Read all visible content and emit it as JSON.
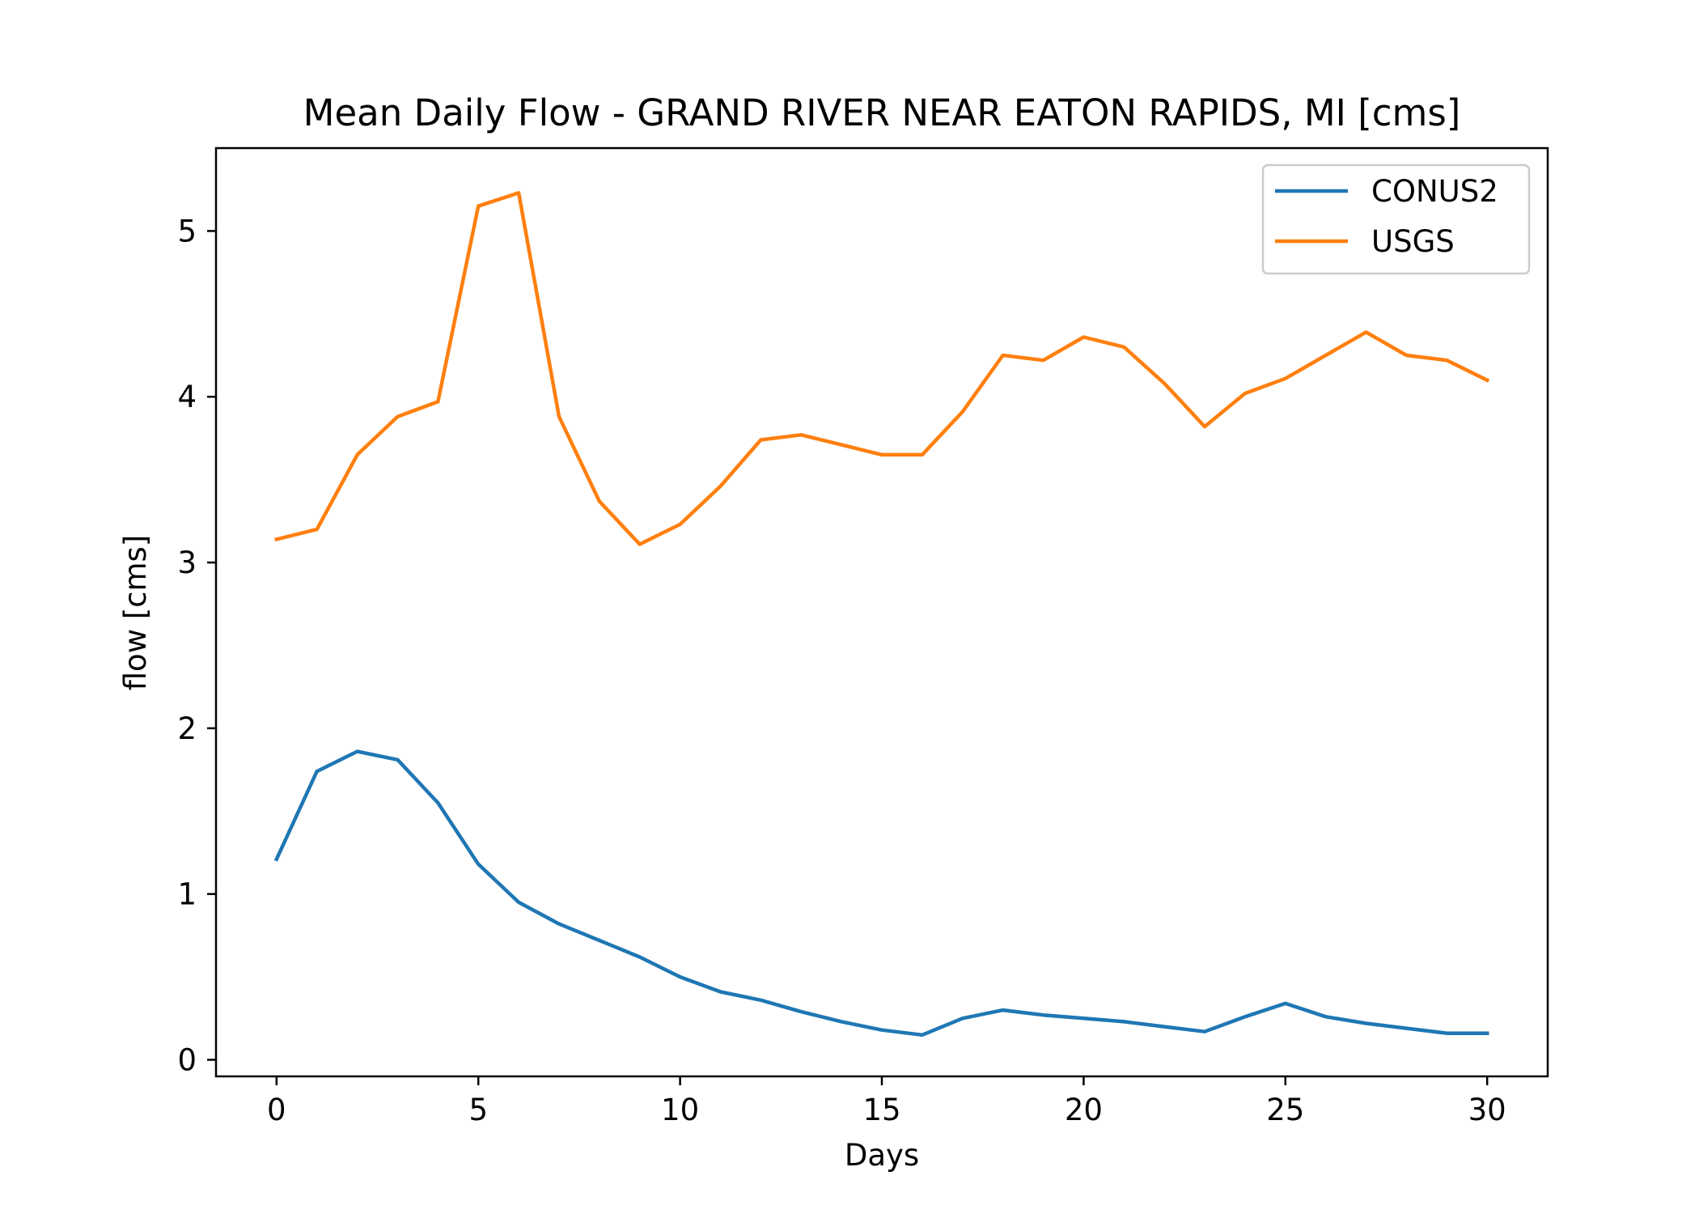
{
  "chart_data": {
    "type": "line",
    "title": "Mean Daily Flow - GRAND RIVER NEAR EATON RAPIDS, MI [cms]",
    "xlabel": "Days",
    "ylabel": "flow [cms]",
    "xlim": [
      -1.5,
      31.5
    ],
    "ylim": [
      -0.1,
      5.5
    ],
    "xticks": [
      0,
      5,
      10,
      15,
      20,
      25,
      30
    ],
    "yticks": [
      0,
      1,
      2,
      3,
      4,
      5
    ],
    "grid": false,
    "legend": {
      "position": "top-right"
    },
    "x": [
      0,
      1,
      2,
      3,
      4,
      5,
      6,
      7,
      8,
      9,
      10,
      11,
      12,
      13,
      14,
      15,
      16,
      17,
      18,
      19,
      20,
      21,
      22,
      23,
      24,
      25,
      26,
      27,
      28,
      29,
      30
    ],
    "series": [
      {
        "name": "CONUS2",
        "color": "#1f77b4",
        "values": [
          1.21,
          1.74,
          1.86,
          1.81,
          1.55,
          1.18,
          0.95,
          0.82,
          0.72,
          0.62,
          0.5,
          0.41,
          0.36,
          0.29,
          0.23,
          0.18,
          0.15,
          0.25,
          0.3,
          0.27,
          0.25,
          0.23,
          0.2,
          0.17,
          0.26,
          0.34,
          0.26,
          0.22,
          0.19,
          0.16,
          0.16
        ]
      },
      {
        "name": "USGS",
        "color": "#ff7f0e",
        "values": [
          3.14,
          3.2,
          3.65,
          3.88,
          3.97,
          5.15,
          5.23,
          3.88,
          3.37,
          3.11,
          3.23,
          3.46,
          3.74,
          3.77,
          3.71,
          3.65,
          3.65,
          3.91,
          4.25,
          4.22,
          4.36,
          4.3,
          4.08,
          3.82,
          4.02,
          4.11,
          4.25,
          4.39,
          4.25,
          4.22,
          4.1
        ]
      }
    ]
  }
}
